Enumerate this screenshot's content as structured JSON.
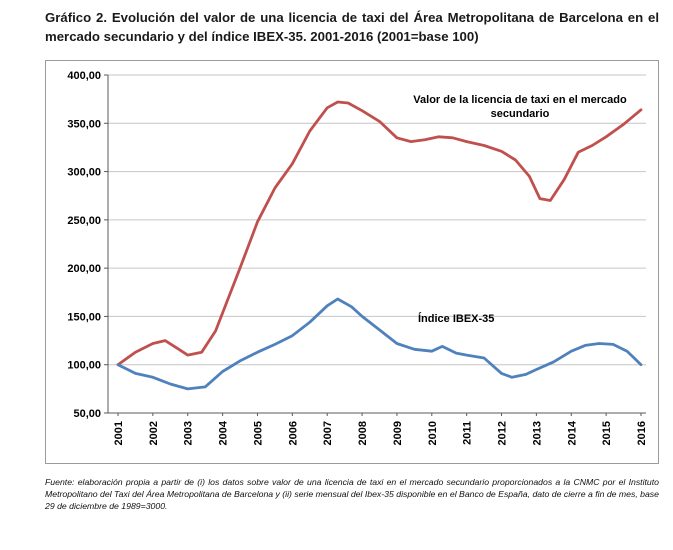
{
  "header": {
    "title": "Gráfico 2. Evolución del valor de una licencia de taxi del Área Metropolitana de Barcelona en el mercado secundario y del índice IBEX-35. 2001-2016 (2001=base 100)"
  },
  "footer": {
    "source": "Fuente: elaboración propia a partir de (i) los datos sobre valor de una licencia de taxi en el mercado secundario proporcionados a la CNMC por el Instituto Metropolitano del Taxi del Área Metropolitana de Barcelona y (ii) serie mensual del Ibex-35 disponible en el Banco de España, dato de cierre a fin de mes, base 29 de diciembre de 1989=3000."
  },
  "chart_data": {
    "type": "line",
    "title": "",
    "xlabel": "",
    "ylabel": "",
    "xlim": [
      2001,
      2016
    ],
    "ylim": [
      50,
      400
    ],
    "grid": true,
    "legend_position": "inline-annotations",
    "x_ticks": [
      "2001",
      "2002",
      "2003",
      "2004",
      "2005",
      "2006",
      "2007",
      "2008",
      "2009",
      "2010",
      "2011",
      "2012",
      "2013",
      "2014",
      "2015",
      "2016"
    ],
    "y_ticks": [
      {
        "value": 400,
        "label": "400,00"
      },
      {
        "value": 350,
        "label": "350,00"
      },
      {
        "value": 300,
        "label": "300,00"
      },
      {
        "value": 250,
        "label": "250,00"
      },
      {
        "value": 200,
        "label": "200,00"
      },
      {
        "value": 150,
        "label": "150,00"
      },
      {
        "value": 100,
        "label": "100,00"
      },
      {
        "value": 50,
        "label": "50,00"
      }
    ],
    "colors": {
      "taxi_line": "#C0504D",
      "ibex_line": "#4F81BD",
      "grid": "#C6C6C6",
      "axis": "#595959"
    },
    "annotations": [
      {
        "text": "Valor de la licencia de taxi en el mercado secundario",
        "near_x": 2010.5,
        "near_y": 355
      },
      {
        "text": "Índice IBEX-35",
        "near_x": 2010.5,
        "near_y": 133
      }
    ],
    "series": [
      {
        "id": "taxi",
        "name": "Valor de la licencia de taxi en el mercado secundario",
        "color": "#C0504D",
        "x": [
          2001,
          2001.5,
          2002,
          2002.35,
          2002.7,
          2003,
          2003.4,
          2003.8,
          2004.5,
          2005,
          2005.5,
          2006,
          2006.5,
          2007,
          2007.3,
          2007.6,
          2008,
          2008.5,
          2009,
          2009.4,
          2009.8,
          2010.2,
          2010.6,
          2011,
          2011.5,
          2012,
          2012.4,
          2012.8,
          2013.1,
          2013.4,
          2013.8,
          2014.2,
          2014.6,
          2015,
          2015.5,
          2016
        ],
        "values": [
          100,
          113,
          122,
          125,
          117,
          110,
          113,
          135,
          200,
          248,
          283,
          308,
          342,
          366,
          372,
          371,
          363,
          352,
          335,
          331,
          333,
          336,
          335,
          331,
          327,
          321,
          312,
          295,
          272,
          270,
          292,
          320,
          327,
          336,
          349,
          364
        ]
      },
      {
        "id": "ibex",
        "name": "Índice IBEX-35",
        "color": "#4F81BD",
        "x": [
          2001,
          2001.5,
          2002,
          2002.5,
          2003,
          2003.5,
          2004,
          2004.5,
          2005,
          2005.5,
          2006,
          2006.5,
          2007,
          2007.3,
          2007.7,
          2008,
          2008.5,
          2009,
          2009.5,
          2010,
          2010.3,
          2010.7,
          2011,
          2011.5,
          2012,
          2012.3,
          2012.7,
          2013,
          2013.5,
          2014,
          2014.4,
          2014.8,
          2015.2,
          2015.6,
          2016
        ],
        "values": [
          100,
          91,
          87,
          80,
          75,
          77,
          93,
          104,
          113,
          121,
          130,
          144,
          161,
          168,
          160,
          150,
          136,
          122,
          116,
          114,
          119,
          112,
          110,
          107,
          91,
          87,
          90,
          95,
          103,
          114,
          120,
          122,
          121,
          114,
          100
        ]
      }
    ]
  }
}
